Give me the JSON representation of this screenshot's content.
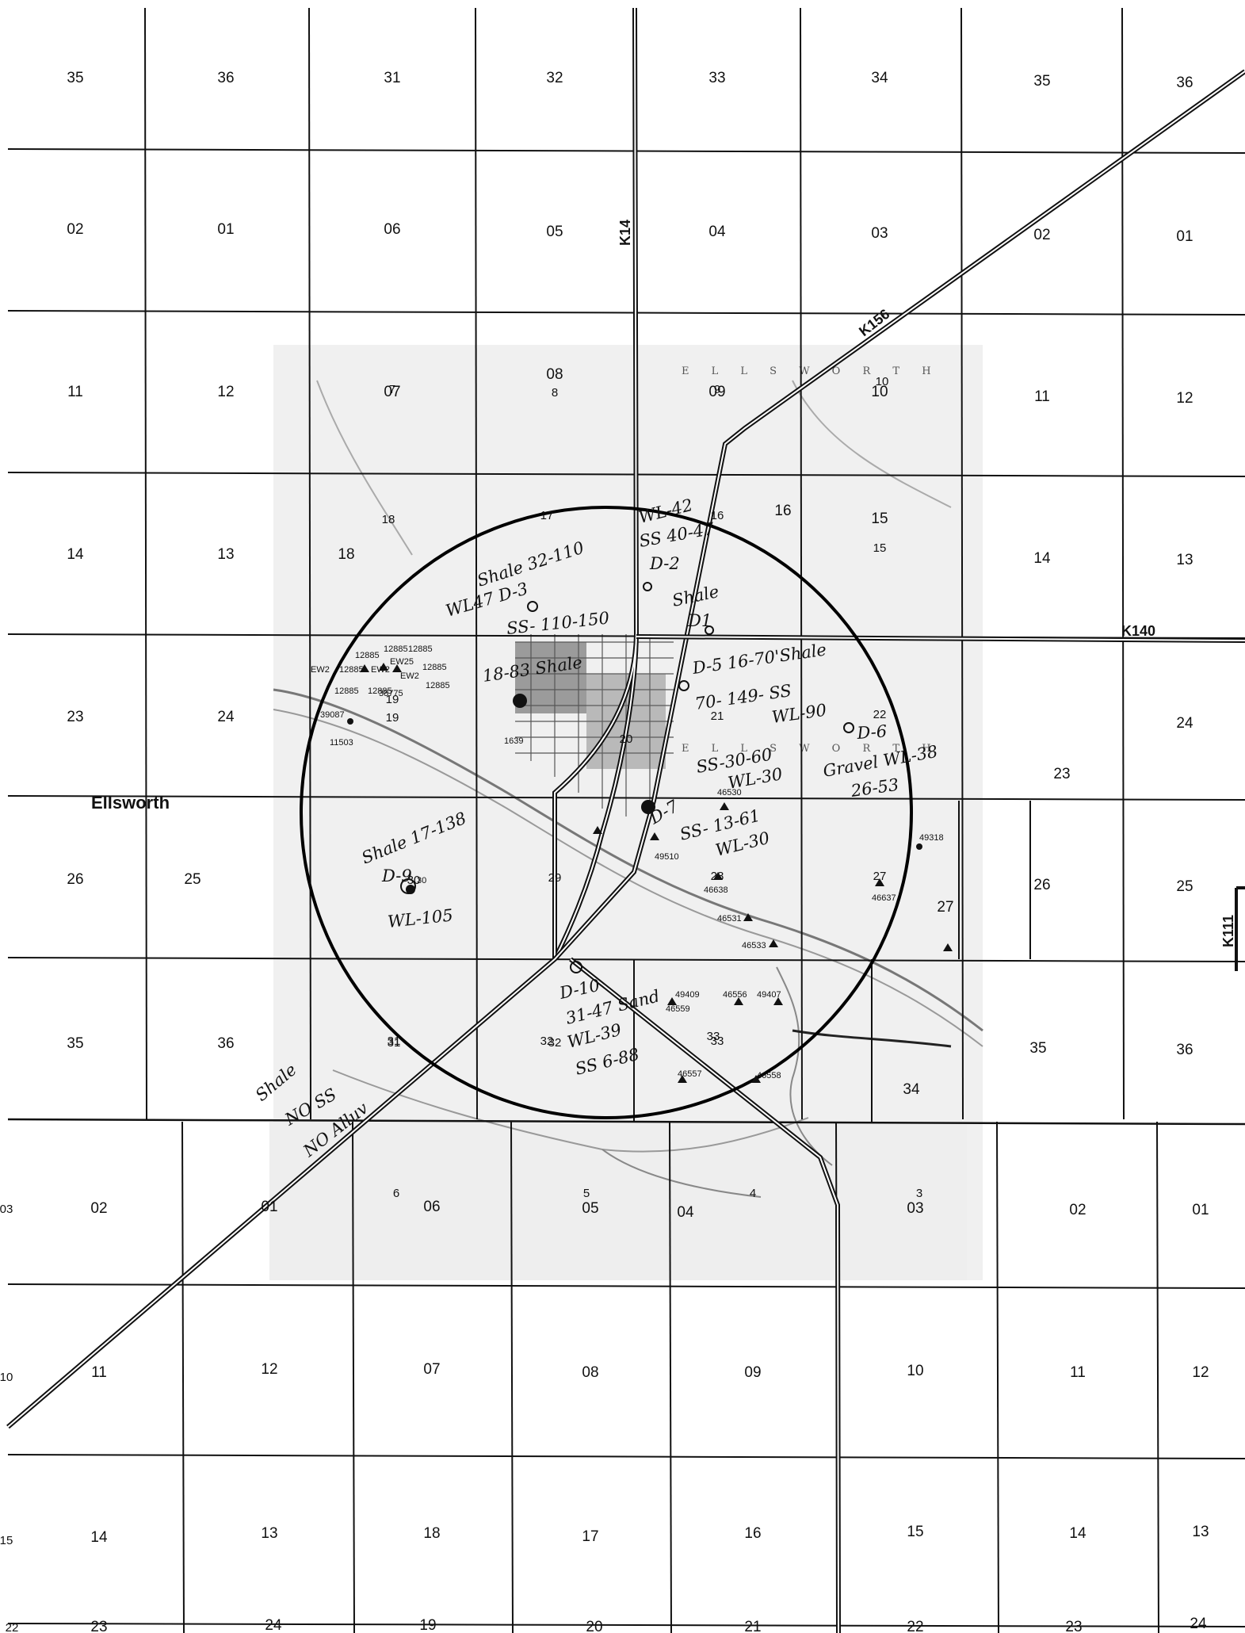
{
  "sections": {
    "row1": [
      "35",
      "36",
      "31",
      "32",
      "33",
      "34",
      "35",
      "36"
    ],
    "row2": [
      "02",
      "01",
      "06",
      "05",
      "04",
      "03",
      "02",
      "01"
    ],
    "row3": [
      "11",
      "12",
      "07",
      "08",
      "09",
      "10",
      "11",
      "12"
    ],
    "row4": [
      "14",
      "13",
      "18",
      "16",
      "15",
      "14",
      "13"
    ],
    "row5": [
      "23",
      "24",
      "19",
      "22",
      "23",
      "24"
    ],
    "row6": [
      "26",
      "25",
      "26",
      "25",
      "27"
    ],
    "row7": [
      "35",
      "36",
      "31",
      "32",
      "33",
      "34",
      "35",
      "36"
    ],
    "row8": [
      "03",
      "02",
      "01",
      "06",
      "05",
      "04",
      "03",
      "02",
      "01"
    ],
    "row9": [
      "10",
      "11",
      "12",
      "07",
      "08",
      "09",
      "10",
      "11",
      "12"
    ],
    "row10": [
      "15",
      "14",
      "13",
      "18",
      "17",
      "16",
      "15",
      "14",
      "13"
    ],
    "row11": [
      "22",
      "23",
      "24",
      "19",
      "20",
      "21",
      "22",
      "23",
      "24"
    ],
    "inner": [
      "8",
      "7",
      "9",
      "10",
      "17",
      "18",
      "16",
      "15",
      "21",
      "20",
      "28",
      "29",
      "27",
      "30",
      "31",
      "32",
      "33",
      "6",
      "5",
      "4",
      "3",
      "22",
      "19"
    ]
  },
  "roads": {
    "k14": "K14",
    "k156": "K156",
    "k140": "K140",
    "k111": "K111"
  },
  "places": {
    "ellsworth": "Ellsworth",
    "ellsworth_county_top": "E L L S W O R T H",
    "ellsworth_county_mid": "E L L S W O R T H"
  },
  "wells": [
    "12885",
    "12885",
    "12885",
    "EW2",
    "12885",
    "EW2",
    "EW25",
    "12885",
    "EW2",
    "12885",
    "12885",
    "38775",
    "12885",
    "39087",
    "11503",
    "1639",
    "46530",
    "49510",
    "46638",
    "46531",
    "46533",
    "49318",
    "46637",
    "49409",
    "46556",
    "49407",
    "46559",
    "46557",
    "46558",
    "30"
  ],
  "annotations": {
    "a1": "WL-42",
    "a2": "SS 40-47",
    "a3": "D-2",
    "a4": "Shale",
    "a5": "D1",
    "a6": "Shale 32-110",
    "a7": "WL47 D-3",
    "a8": "SS- 110-150",
    "a9": "18-83 Shale",
    "a10": "D-5 16-70'Shale",
    "a11": "70- 149- SS",
    "a12": "WL-90",
    "a13": "D-6",
    "a14": "Gravel WL-38",
    "a15": "26-53",
    "a16": "SS-30-60",
    "a17": "WL-30",
    "a18": "D-7",
    "a19": "SS- 13-61",
    "a20": "WL-30",
    "a21": "Shale 17-138",
    "a22": "D-9",
    "a23": "WL-105",
    "a24": "D-10",
    "a25": "31-47 Sand",
    "a26": "WL-39",
    "a27": "SS 6-88",
    "a28": "Shale",
    "a29": "NO SS",
    "a30": "NO Alluv"
  }
}
